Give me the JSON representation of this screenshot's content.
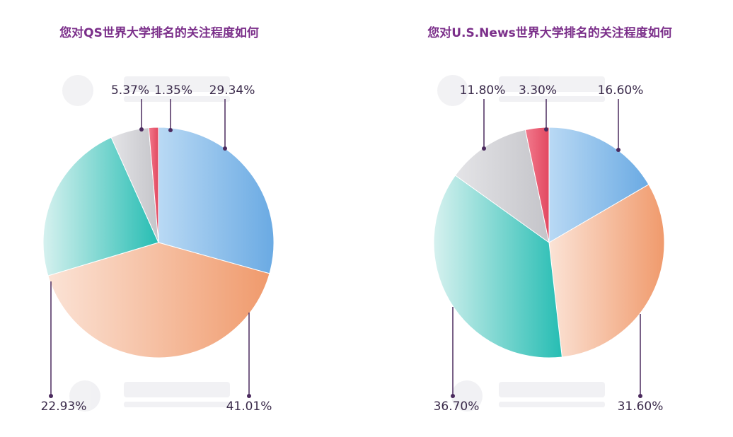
{
  "colors": {
    "title": "#7b2f8a",
    "label": "#3a2a4a",
    "leader": "#4b2a5e",
    "blue": "#7eb6e6",
    "orange": "#f3a37a",
    "teal": "#3cc3bb",
    "gray": "#cfcfd3",
    "red": "#e9566f"
  },
  "chart_data": [
    {
      "type": "pie",
      "title": "您对QS世界大学排名的关注程度如何",
      "slices": [
        {
          "label": "29.34%",
          "value": 29.34,
          "color": "blue"
        },
        {
          "label": "41.01%",
          "value": 41.01,
          "color": "orange"
        },
        {
          "label": "22.93%",
          "value": 22.93,
          "color": "teal"
        },
        {
          "label": "5.37%",
          "value": 5.37,
          "color": "gray"
        },
        {
          "label": "1.35%",
          "value": 1.35,
          "color": "red"
        }
      ]
    },
    {
      "type": "pie",
      "title": "您对U.S.News世界大学排名的关注程度如何",
      "slices": [
        {
          "label": "16.60%",
          "value": 16.6,
          "color": "blue"
        },
        {
          "label": "31.60%",
          "value": 31.6,
          "color": "orange"
        },
        {
          "label": "36.70%",
          "value": 36.7,
          "color": "teal"
        },
        {
          "label": "11.80%",
          "value": 11.8,
          "color": "gray"
        },
        {
          "label": "3.30%",
          "value": 3.3,
          "color": "red"
        }
      ]
    }
  ]
}
